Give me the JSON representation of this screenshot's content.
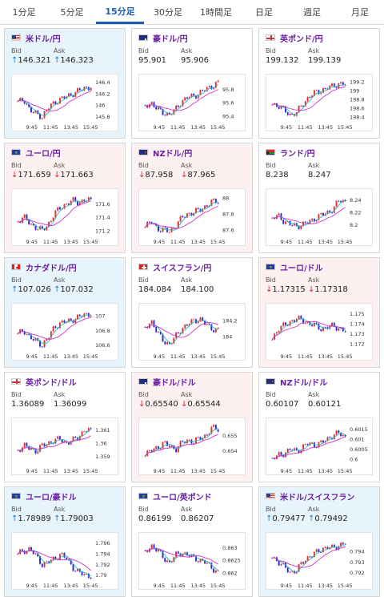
{
  "tabs": [
    {
      "label": "1分足",
      "active": false
    },
    {
      "label": "5分足",
      "active": false
    },
    {
      "label": "15分足",
      "active": true
    },
    {
      "label": "30分足",
      "active": false
    },
    {
      "label": "1時間足",
      "active": false
    },
    {
      "label": "日足",
      "active": false
    },
    {
      "label": "週足",
      "active": false
    },
    {
      "label": "月足",
      "active": false
    }
  ],
  "labels": {
    "bid": "Bid",
    "ask": "Ask"
  },
  "x_ticks": [
    "9:45",
    "11:45",
    "13:45",
    "15:45"
  ],
  "colors": {
    "up_candle": "#e03030",
    "down_candle": "#2a2ad0",
    "ma_short": "#2ab5b5",
    "ma_long": "#cc33cc",
    "pair_name": "#6a1fa2",
    "up_arrow": "#1a7fd4",
    "down_arrow": "#dd2222"
  },
  "cards": [
    {
      "pair": "米ドル/円",
      "flag": "us",
      "dir": "up",
      "bid": "↑146.321",
      "ask": "↑146.323",
      "yticks": [
        "146.4",
        "146.2",
        "146",
        "145.8"
      ],
      "ylim": [
        145.75,
        146.45
      ],
      "trend": [
        146.05,
        146.1,
        145.9,
        145.85,
        145.8,
        145.95,
        146.05,
        146.1,
        146.15,
        146.2,
        146.25,
        146.3,
        146.32
      ]
    },
    {
      "pair": "豪ドル/円",
      "flag": "au",
      "dir": "neutral",
      "bid": "95.901",
      "ask": "95.906",
      "yticks": [
        "95.8",
        "95.6",
        "95.4"
      ],
      "ylim": [
        95.35,
        95.95
      ],
      "trend": [
        95.55,
        95.6,
        95.5,
        95.45,
        95.42,
        95.5,
        95.62,
        95.68,
        95.7,
        95.75,
        95.8,
        95.85,
        95.9
      ]
    },
    {
      "pair": "英ポンド/円",
      "flag": "gb",
      "dir": "neutral",
      "bid": "199.132",
      "ask": "199.139",
      "yticks": [
        "199.2",
        "199",
        "198.8",
        "198.6",
        "198.4"
      ],
      "ylim": [
        198.35,
        199.25
      ],
      "trend": [
        198.7,
        198.65,
        198.55,
        198.45,
        198.5,
        198.7,
        198.85,
        198.95,
        199.0,
        199.05,
        199.1,
        199.15,
        199.13
      ]
    },
    {
      "pair": "ユーロ/円",
      "flag": "eu",
      "dir": "down",
      "bid": "↓171.659",
      "ask": "↓171.663",
      "yticks": [
        "171.6",
        "171.4",
        "171.2"
      ],
      "ylim": [
        171.15,
        171.75
      ],
      "trend": [
        171.35,
        171.4,
        171.3,
        171.25,
        171.2,
        171.3,
        171.45,
        171.55,
        171.6,
        171.65,
        171.62,
        171.66,
        171.65
      ]
    },
    {
      "pair": "NZドル/円",
      "flag": "nz",
      "dir": "down",
      "bid": "↓87.958",
      "ask": "↓87.965",
      "yticks": [
        "88",
        "87.8",
        "87.6"
      ],
      "ylim": [
        87.55,
        88.05
      ],
      "trend": [
        87.65,
        87.7,
        87.62,
        87.6,
        87.58,
        87.65,
        87.75,
        87.8,
        87.82,
        87.85,
        87.9,
        87.95,
        87.96
      ]
    },
    {
      "pair": "ランド/円",
      "flag": "za",
      "dir": "neutral",
      "bid": "8.238",
      "ask": "8.247",
      "yticks": [
        "8.24",
        "8.22",
        "8.2"
      ],
      "ylim": [
        8.185,
        8.25
      ],
      "trend": [
        8.21,
        8.215,
        8.205,
        8.2,
        8.198,
        8.2,
        8.205,
        8.21,
        8.215,
        8.22,
        8.225,
        8.24,
        8.238
      ]
    },
    {
      "pair": "カナダドル/円",
      "flag": "ca",
      "dir": "up",
      "bid": "↑107.026",
      "ask": "↑107.032",
      "yticks": [
        "107",
        "106.8",
        "106.6"
      ],
      "ylim": [
        106.55,
        107.1
      ],
      "trend": [
        106.75,
        106.8,
        106.7,
        106.65,
        106.6,
        106.7,
        106.85,
        106.9,
        106.92,
        106.95,
        106.98,
        107.02,
        107.03
      ]
    },
    {
      "pair": "スイスフラン/円",
      "flag": "ch",
      "dir": "neutral",
      "bid": "184.084",
      "ask": "184.100",
      "yticks": [
        "184.2",
        "184"
      ],
      "ylim": [
        183.85,
        184.35
      ],
      "trend": [
        184.1,
        184.2,
        184.05,
        183.95,
        183.9,
        184.0,
        184.1,
        184.15,
        184.2,
        184.22,
        184.15,
        184.1,
        184.08
      ]
    },
    {
      "pair": "ユーロ/ドル",
      "flag": "eu",
      "dir": "down",
      "bid": "↓1.17315",
      "ask": "↓1.17318",
      "yticks": [
        "1.175",
        "1.174",
        "1.173",
        "1.172"
      ],
      "ylim": [
        1.1715,
        1.1755
      ],
      "trend": [
        1.1725,
        1.1735,
        1.1738,
        1.1742,
        1.1745,
        1.1743,
        1.174,
        1.1738,
        1.1735,
        1.1736,
        1.1738,
        1.1735,
        1.1732
      ]
    },
    {
      "pair": "英ポンド/ドル",
      "flag": "gb",
      "dir": "neutral",
      "bid": "1.36089",
      "ask": "1.36099",
      "yticks": [
        "1.361",
        "1.36",
        "1.359"
      ],
      "ylim": [
        1.3585,
        1.3615
      ],
      "trend": [
        1.3595,
        1.3598,
        1.3596,
        1.3594,
        1.3598,
        1.36,
        1.3602,
        1.3603,
        1.36,
        1.3602,
        1.3605,
        1.361,
        1.3609
      ]
    },
    {
      "pair": "豪ドル/ドル",
      "flag": "au",
      "dir": "down",
      "bid": "↓0.65540",
      "ask": "↓0.65544",
      "yticks": [
        "0.655",
        "0.654"
      ],
      "ylim": [
        0.6532,
        0.6558
      ],
      "trend": [
        0.6538,
        0.654,
        0.6542,
        0.6545,
        0.6543,
        0.6541,
        0.6545,
        0.6547,
        0.6546,
        0.6548,
        0.655,
        0.6555,
        0.6554
      ]
    },
    {
      "pair": "NZドル/ドル",
      "flag": "nz",
      "dir": "neutral",
      "bid": "0.60107",
      "ask": "0.60121",
      "yticks": [
        "0.6015",
        "0.601",
        "0.6005",
        "0.6"
      ],
      "ylim": [
        0.5998,
        0.6018
      ],
      "trend": [
        0.6,
        0.6002,
        0.6003,
        0.6005,
        0.6004,
        0.6006,
        0.6008,
        0.6007,
        0.6008,
        0.601,
        0.6012,
        0.6013,
        0.6011
      ]
    },
    {
      "pair": "ユーロ/豪ドル",
      "flag": "eu",
      "dir": "up",
      "bid": "↑1.78989",
      "ask": "↑1.79003",
      "yticks": [
        "1.796",
        "1.794",
        "1.792",
        "1.79"
      ],
      "ylim": [
        1.7895,
        1.797
      ],
      "trend": [
        1.794,
        1.7945,
        1.795,
        1.7935,
        1.792,
        1.7925,
        1.793,
        1.794,
        1.793,
        1.7915,
        1.7905,
        1.79,
        1.7899
      ]
    },
    {
      "pair": "ユーロ/英ポンド",
      "flag": "eu",
      "dir": "neutral",
      "bid": "0.86199",
      "ask": "0.86207",
      "yticks": [
        "0.863",
        "0.8625",
        "0.862"
      ],
      "ylim": [
        0.8618,
        0.8634
      ],
      "trend": [
        0.8628,
        0.8631,
        0.8629,
        0.8626,
        0.8624,
        0.8627,
        0.8628,
        0.8627,
        0.8626,
        0.8625,
        0.8624,
        0.8622,
        0.862
      ]
    },
    {
      "pair": "米ドル/スイスフラン",
      "flag": "us",
      "dir": "up",
      "bid": "↑0.79477",
      "ask": "↑0.79492",
      "yticks": [
        "0.794",
        "0.793",
        "0.792"
      ],
      "ylim": [
        0.7915,
        0.7953
      ],
      "trend": [
        0.7935,
        0.793,
        0.7925,
        0.792,
        0.7922,
        0.793,
        0.7935,
        0.7938,
        0.7942,
        0.7944,
        0.7943,
        0.7946,
        0.7948
      ]
    }
  ]
}
